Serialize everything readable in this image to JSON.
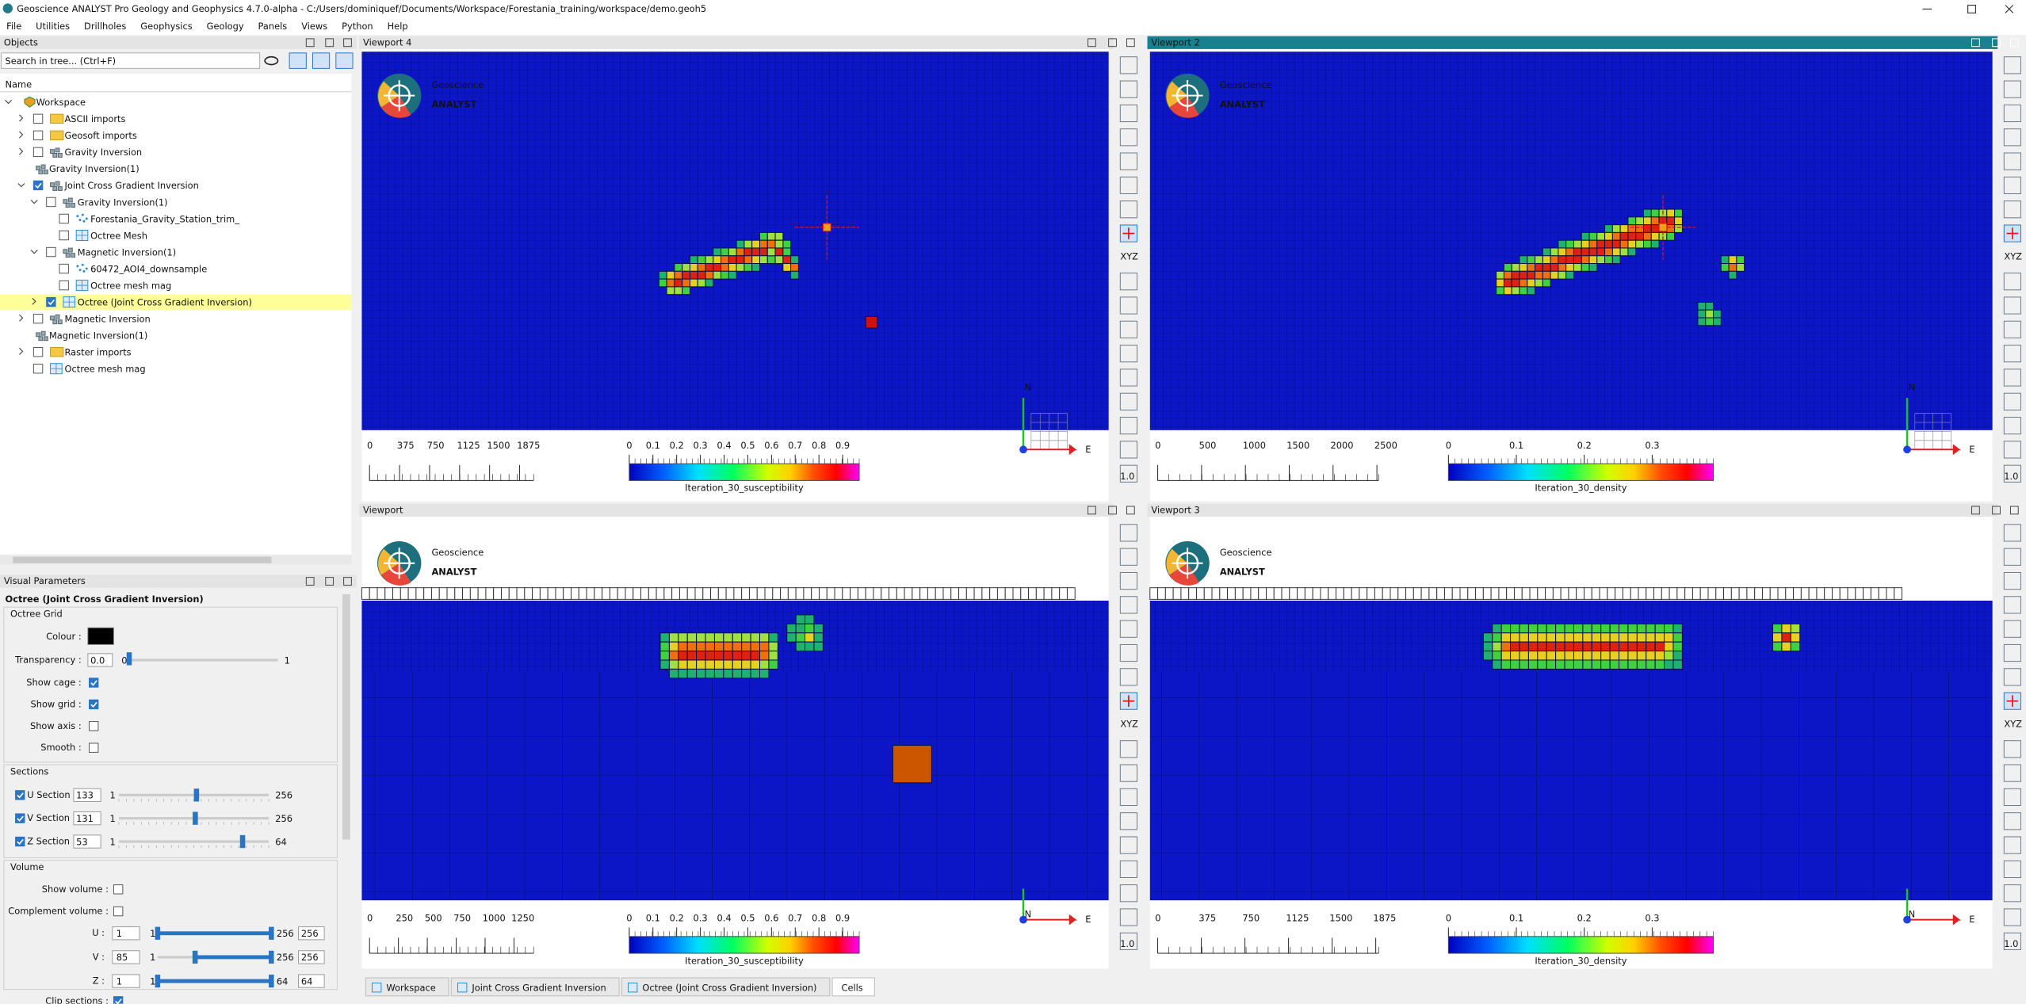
{
  "window_title": "Geoscience ANALYST Pro Geology and Geophysics 4.7.0-alpha - C:/Users/dominiquef/Documents/Workspace/Forestania_training/workspace/demo.geoh5",
  "menu": [
    "File",
    "Utilities",
    "Drillholes",
    "Geophysics",
    "Geology",
    "Panels",
    "Views",
    "Python",
    "Help"
  ],
  "objects": {
    "title": "Objects",
    "search_placeholder": "Search in tree... (Ctrl+F)",
    "column": "Name",
    "tree": [
      {
        "label": "Workspace",
        "icon": "workspace",
        "expanded": true,
        "children": [
          {
            "label": "ASCII imports",
            "icon": "folder",
            "checked": false,
            "expanded": false
          },
          {
            "label": "Geosoft imports",
            "icon": "folder",
            "checked": false,
            "expanded": false
          },
          {
            "label": "Gravity Inversion",
            "icon": "group",
            "checked": false,
            "expanded": false
          },
          {
            "label": "Gravity Inversion(1)",
            "icon": "group"
          },
          {
            "label": "Joint Cross Gradient Inversion",
            "icon": "group",
            "checked": true,
            "expanded": true,
            "children": [
              {
                "label": "Gravity Inversion(1)",
                "icon": "group",
                "checked": false,
                "expanded": true,
                "children": [
                  {
                    "label": "Forestania_Gravity_Station_trim_",
                    "icon": "points",
                    "checked": false
                  },
                  {
                    "label": "Octree Mesh",
                    "icon": "mesh",
                    "checked": false
                  }
                ]
              },
              {
                "label": "Magnetic Inversion(1)",
                "icon": "group",
                "checked": false,
                "expanded": true,
                "children": [
                  {
                    "label": "60472_AOI4_downsample",
                    "icon": "points",
                    "checked": false
                  },
                  {
                    "label": "Octree mesh mag",
                    "icon": "mesh",
                    "checked": false
                  }
                ]
              },
              {
                "label": "Octree (Joint Cross Gradient Inversion)",
                "icon": "mesh",
                "checked": true,
                "expanded": false,
                "selected": true
              }
            ]
          },
          {
            "label": "Magnetic Inversion",
            "icon": "group",
            "checked": false,
            "expanded": false
          },
          {
            "label": "Magnetic Inversion(1)",
            "icon": "group"
          },
          {
            "label": "Raster imports",
            "icon": "folder",
            "checked": false,
            "expanded": false
          },
          {
            "label": "Octree mesh mag",
            "icon": "mesh",
            "checked": false
          }
        ]
      }
    ]
  },
  "visual_parameters": {
    "title": "Visual Parameters",
    "object": "Octree (Joint Cross Gradient Inversion)",
    "octree_grid": {
      "title": "Octree Grid",
      "colour_label": "Colour :",
      "colour": "#000000",
      "transparency": {
        "label": "Transparency :",
        "value": 0,
        "value_label": "0.0",
        "min": 0,
        "max": 1
      },
      "checks": [
        {
          "label": "Show cage :",
          "checked": true
        },
        {
          "label": "Show grid :",
          "checked": true
        },
        {
          "label": "Show axis :",
          "checked": false
        },
        {
          "label": "Smooth :",
          "checked": false
        }
      ]
    },
    "sections": {
      "title": "Sections",
      "rows": [
        {
          "label": "U Section :",
          "enabled": true,
          "value": 133,
          "min": 1,
          "max": 256
        },
        {
          "label": "V Section :",
          "enabled": true,
          "value": 131,
          "min": 1,
          "max": 256
        },
        {
          "label": "Z Section :",
          "enabled": true,
          "value": 53,
          "min": 1,
          "max": 64
        }
      ]
    },
    "volume": {
      "title": "Volume",
      "checks": [
        {
          "label": "Show volume :",
          "checked": false
        },
        {
          "label": "Complement volume :",
          "checked": false
        }
      ],
      "rows": [
        {
          "label": "U :",
          "value": 1,
          "min": 1,
          "max": 256,
          "upper": 256
        },
        {
          "label": "V :",
          "value": 85,
          "min": 1,
          "max": 256,
          "upper": 256
        },
        {
          "label": "Z :",
          "value": 1,
          "min": 1,
          "max": 64,
          "upper": 64
        }
      ],
      "clip_label": "Clip sections :"
    }
  },
  "logo": {
    "top": "Geoscience",
    "bottom": "ANALYST"
  },
  "compass": {
    "north": "N",
    "east": "E"
  },
  "toolbar": {
    "xyz": "XYZ",
    "zoom": "1.0"
  },
  "viewports": [
    {
      "title": "Viewport 4",
      "active": false,
      "scale": {
        "ticks": [
          0,
          375,
          750,
          1125,
          1500,
          1875
        ],
        "lim": [
          0,
          2050
        ]
      },
      "colorbar": {
        "title": "Iteration_30_susceptibility",
        "ticks": [
          0,
          0.1,
          0.2,
          0.3,
          0.4,
          0.5,
          0.6,
          0.7,
          0.8,
          0.9
        ],
        "lim": [
          0,
          0.97
        ]
      }
    },
    {
      "title": "Viewport 2",
      "active": true,
      "scale": {
        "ticks": [
          0,
          500,
          1000,
          1500,
          2000,
          2500
        ],
        "lim": [
          0,
          2520
        ]
      },
      "colorbar": {
        "title": "Iteration_30_density",
        "ticks": [
          0,
          0.1,
          0.2,
          0.3
        ],
        "lim": [
          0,
          0.39
        ]
      }
    },
    {
      "title": "Viewport",
      "active": false,
      "scale": {
        "ticks": [
          0,
          250,
          500,
          750,
          1000,
          1250
        ],
        "lim": [
          0,
          1420
        ]
      },
      "colorbar": {
        "title": "Iteration_30_susceptibility",
        "ticks": [
          0,
          0.1,
          0.2,
          0.3,
          0.4,
          0.5,
          0.6,
          0.7,
          0.8,
          0.9
        ],
        "lim": [
          0,
          0.97
        ]
      }
    },
    {
      "title": "Viewport 3",
      "active": false,
      "scale": {
        "ticks": [
          0,
          375,
          750,
          1125,
          1500,
          1875
        ],
        "lim": [
          0,
          1900
        ]
      },
      "colorbar": {
        "title": "Iteration_30_density",
        "ticks": [
          0,
          0.1,
          0.2,
          0.3
        ],
        "lim": [
          0,
          0.39
        ]
      }
    }
  ],
  "tabs": {
    "items": [
      "Workspace",
      "Joint Cross Gradient Inversion",
      "Octree (Joint Cross Gradient Inversion)",
      "Cells"
    ],
    "active": 3
  }
}
